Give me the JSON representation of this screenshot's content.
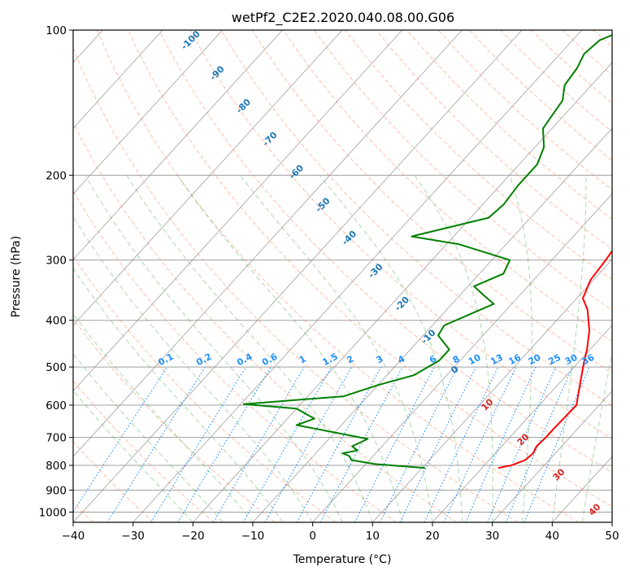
{
  "colors": {
    "temperature": "#ff0000",
    "dewpoint": "#008000",
    "dry_adiabat": "#ff7f50",
    "moist_adiabat": "#2ca02c",
    "mixing_ratio": "#1e90ff",
    "isotherm": "#808080",
    "isobar": "#a0a0a0",
    "dry_label": "#1f77b4",
    "moist_label": "#d62728"
  },
  "chart_data": {
    "type": "line",
    "diagram": "skew-t log-p",
    "title": "wetPf2_C2E2.2020.040.08.00.G06",
    "xlabel": "Temperature (°C)",
    "ylabel": "Pressure (hPa)",
    "xlim": [
      -40,
      50
    ],
    "ylim": [
      1050,
      100
    ],
    "y_scale": "log",
    "grid": true,
    "x_ticks": [
      "−40",
      "−30",
      "−20",
      "−10",
      "0",
      "10",
      "20",
      "30",
      "40",
      "50"
    ],
    "y_ticks": [
      "100",
      "200",
      "300",
      "400",
      "500",
      "600",
      "700",
      "800",
      "900",
      "1000"
    ],
    "series": [
      {
        "key": "temperature",
        "points": [
          [
            22.7,
            810
          ],
          [
            24.5,
            800
          ],
          [
            26.0,
            780
          ],
          [
            26.3,
            755
          ],
          [
            25.8,
            730
          ],
          [
            26.0,
            700
          ],
          [
            26.0,
            670
          ],
          [
            26.1,
            640
          ],
          [
            26.2,
            600
          ],
          [
            23.0,
            530
          ],
          [
            21.0,
            490
          ],
          [
            19.5,
            460
          ],
          [
            17.0,
            420
          ],
          [
            13.5,
            380
          ],
          [
            11.0,
            360
          ],
          [
            9.5,
            330
          ],
          [
            9.0,
            300
          ],
          [
            8.5,
            280
          ],
          [
            6.0,
            250
          ],
          [
            2.0,
            220
          ],
          [
            -1.0,
            195
          ],
          [
            -3.5,
            170
          ],
          [
            -6.0,
            150
          ],
          [
            -9.0,
            135
          ],
          [
            -13.5,
            122
          ],
          [
            -16.5,
            112
          ],
          [
            -19.0,
            100
          ]
        ]
      },
      {
        "key": "dewpoint",
        "points": [
          [
            10.5,
            810
          ],
          [
            1.5,
            795
          ],
          [
            -3.0,
            780
          ],
          [
            -4.0,
            765
          ],
          [
            -5.5,
            755
          ],
          [
            -3.5,
            745
          ],
          [
            -5.0,
            730
          ],
          [
            -3.5,
            705
          ],
          [
            -8.0,
            690
          ],
          [
            -17.5,
            660
          ],
          [
            -15.5,
            640
          ],
          [
            -20.0,
            610
          ],
          [
            -29.5,
            597
          ],
          [
            -14.0,
            575
          ],
          [
            -10.0,
            545
          ],
          [
            -5.5,
            520
          ],
          [
            -3.5,
            485
          ],
          [
            -3.5,
            460
          ],
          [
            -7.5,
            430
          ],
          [
            -8.0,
            410
          ],
          [
            -5.0,
            385
          ],
          [
            -3.0,
            370
          ],
          [
            -6.0,
            355
          ],
          [
            -9.0,
            340
          ],
          [
            -6.0,
            320
          ],
          [
            -7.0,
            300
          ],
          [
            -18.0,
            278
          ],
          [
            -27.0,
            268
          ],
          [
            -17.0,
            245
          ],
          [
            -16.5,
            230
          ],
          [
            -17.0,
            210
          ],
          [
            -17.0,
            190
          ],
          [
            -18.5,
            175
          ],
          [
            -21.5,
            160
          ],
          [
            -22.0,
            150
          ],
          [
            -22.5,
            140
          ],
          [
            -24.5,
            130
          ],
          [
            -25.0,
            120
          ],
          [
            -26.0,
            112
          ],
          [
            -25.5,
            105
          ],
          [
            -23.0,
            100
          ]
        ]
      }
    ],
    "mixing_ratio_lines_g_per_kg": [
      "0.1",
      "0.2",
      "0.4",
      "0.6",
      "1",
      "1.5",
      "2",
      "3",
      "4",
      "6",
      "8",
      "10",
      "13",
      "16",
      "20",
      "25",
      "30",
      "36"
    ],
    "dry_adiabat_labels": [
      "-100",
      "-90",
      "-80",
      "-70",
      "-60",
      "-50",
      "-40",
      "-30",
      "-20",
      "-10",
      "0"
    ],
    "moist_adiabat_labels": [
      "10",
      "20",
      "30",
      "40"
    ]
  }
}
